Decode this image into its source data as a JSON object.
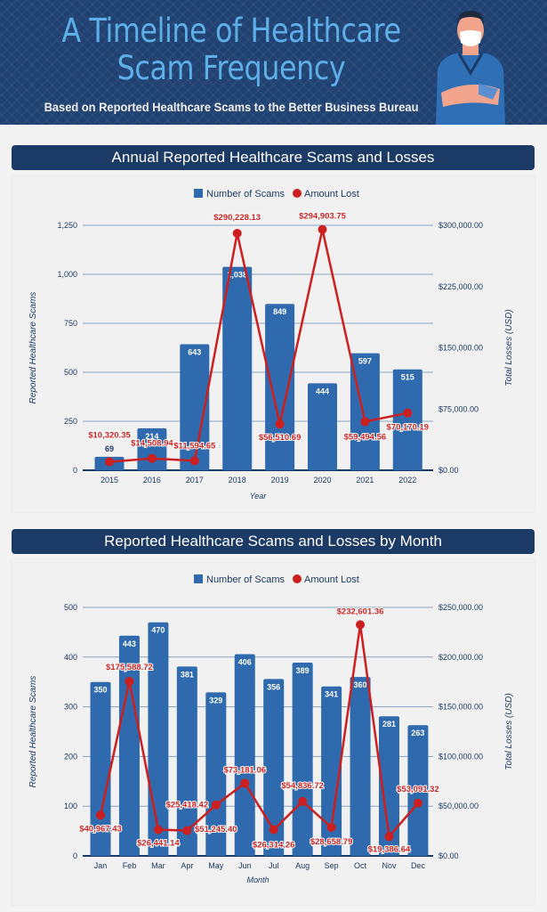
{
  "header": {
    "title_line1": "A Timeline of Healthcare",
    "title_line2": "Scam Frequency",
    "subtitle": "Based on Reported Healthcare Scams to the Better Business Bureau"
  },
  "colors": {
    "header_bg": "#1f4272",
    "title": "#5eaee8",
    "bar": "#2e6aad",
    "line": "#cc1f1f",
    "section_bg": "#1b3b66"
  },
  "chart_data": [
    {
      "type": "bar+line",
      "title": "Annual Reported Healthcare Scams and Losses",
      "categories": [
        "2015",
        "2016",
        "2017",
        "2018",
        "2019",
        "2020",
        "2021",
        "2022"
      ],
      "xlabel": "Year",
      "ylabel": "Reported Healthcare Scams",
      "ylabel_right": "Total Losses (USD)",
      "ylim": [
        0,
        1250
      ],
      "yticks": [
        "0",
        "250",
        "500",
        "750",
        "1,000",
        "1,250"
      ],
      "ylim_right": [
        0,
        300000
      ],
      "yticks_right": [
        "$0.00",
        "$75,000.00",
        "$150,000.00",
        "$225,000.00",
        "$300,000.00"
      ],
      "legend": {
        "position": "top",
        "items": [
          "Number of Scams",
          "Amount Lost"
        ]
      },
      "grid": true,
      "series": [
        {
          "name": "Number of Scams",
          "kind": "bar",
          "values": [
            69,
            214,
            643,
            1038,
            849,
            444,
            597,
            515
          ],
          "labels": [
            "69",
            "214",
            "643",
            "1,038",
            "849",
            "444",
            "597",
            "515"
          ]
        },
        {
          "name": "Amount Lost",
          "kind": "line",
          "values": [
            10320.35,
            14508.94,
            11594.65,
            290228.13,
            56510.69,
            294903.75,
            59494.56,
            70170.19
          ],
          "labels": [
            "$10,320.35",
            "$14,508.94",
            "$11,594.65",
            "$290,228.13",
            "$56,510.69",
            "$294,903.75",
            "$59,494.56",
            "$70,170.19"
          ]
        }
      ]
    },
    {
      "type": "bar+line",
      "title": "Reported Healthcare Scams and Losses by Month",
      "categories": [
        "Jan",
        "Feb",
        "Mar",
        "Apr",
        "May",
        "Jun",
        "Jul",
        "Aug",
        "Sep",
        "Oct",
        "Nov",
        "Dec"
      ],
      "xlabel": "Month",
      "ylabel": "Reported Healthcare Scams",
      "ylabel_right": "Total Losses (USD)",
      "ylim": [
        0,
        500
      ],
      "yticks": [
        "0",
        "100",
        "200",
        "300",
        "400",
        "500"
      ],
      "ylim_right": [
        0,
        250000
      ],
      "yticks_right": [
        "$0.00",
        "$50,000.00",
        "$100,000.00",
        "$150,000.00",
        "$200,000.00",
        "$250,000.00"
      ],
      "legend": {
        "position": "top",
        "items": [
          "Number of Scams",
          "Amount Lost"
        ]
      },
      "grid": true,
      "series": [
        {
          "name": "Number of Scams",
          "kind": "bar",
          "values": [
            350,
            443,
            470,
            381,
            329,
            406,
            356,
            389,
            341,
            360,
            281,
            263
          ],
          "labels": [
            "350",
            "443",
            "470",
            "381",
            "329",
            "406",
            "356",
            "389",
            "341",
            "360",
            "281",
            "263"
          ]
        },
        {
          "name": "Amount Lost",
          "kind": "line",
          "values": [
            40967.43,
            175588.72,
            26441.14,
            25418.42,
            51245.4,
            73181.06,
            26314.26,
            54836.72,
            28658.79,
            232601.36,
            19386.64,
            53091.32
          ],
          "labels": [
            "$40,967.43",
            "$175,588.72",
            "$26,441.14",
            "$25,418.42",
            "$51,245.40",
            "$73,181.06",
            "$26,314.26",
            "$54,836.72",
            "$28,658.79",
            "$232,601.36",
            "$19,386.64",
            "$53,091.32"
          ]
        }
      ]
    }
  ]
}
